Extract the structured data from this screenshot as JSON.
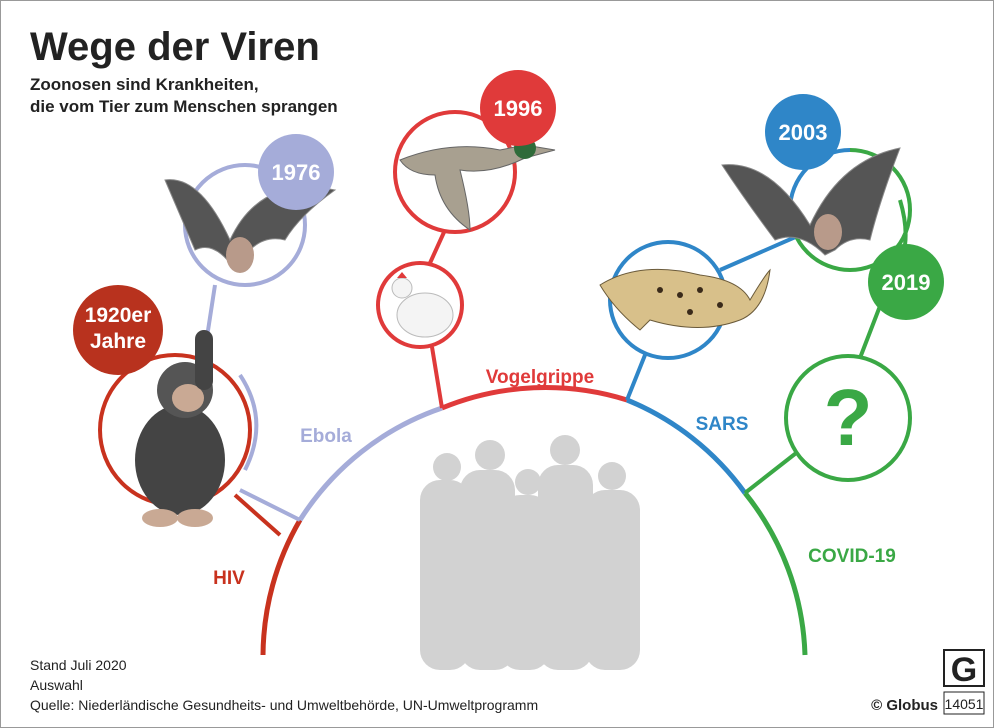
{
  "header": {
    "title": "Wege der Viren",
    "subtitle": [
      "Zoonosen sind Krankheiten,",
      "die vom Tier zum Menschen sprangen"
    ]
  },
  "viruses": [
    {
      "name": "HIV",
      "year": [
        "1920er",
        "Jahre"
      ]
    },
    {
      "name": "Ebola",
      "year": [
        "1976"
      ]
    },
    {
      "name": "Vogelgrippe",
      "year": [
        "1996"
      ]
    },
    {
      "name": "SARS",
      "year": [
        "2003"
      ]
    },
    {
      "name": "COVID-19",
      "year": [
        "2019"
      ],
      "unknown": "?"
    }
  ],
  "footer": {
    "notes": [
      "Stand Juli 2020",
      "Auswahl",
      "Quelle: Niederländische Gesundheits- und Umweltbehörde, UN-Umweltprogramm"
    ],
    "credit": "© Globus",
    "logo": "G",
    "number": "14051"
  }
}
